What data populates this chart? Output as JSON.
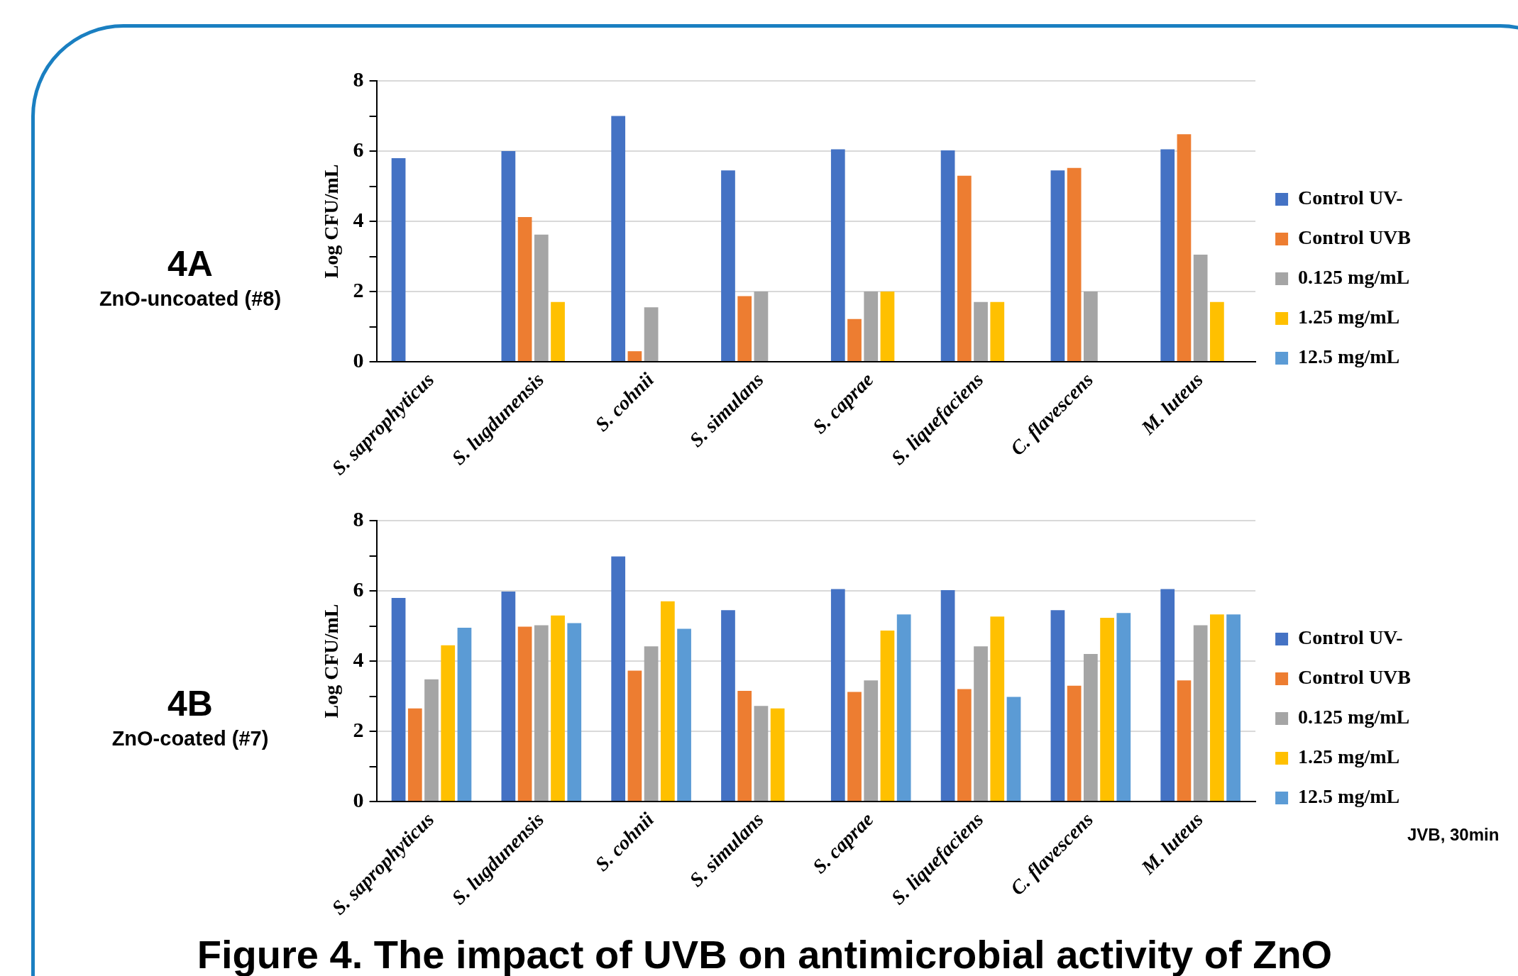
{
  "chart_data": [
    {
      "type": "bar",
      "title": "4A",
      "subtitle": "ZnO-uncoated (#8)",
      "ylabel": "Log CFU/mL",
      "categories": [
        "S. saprophyticus",
        "S. lugdunensis",
        "S. cohnii",
        "S. simulans",
        "S. caprae",
        "S. liquefaciens",
        "C. flavescens",
        "M. luteus"
      ],
      "series": [
        {
          "name": "Control UV-",
          "color": "#4472c4",
          "values": [
            5.8,
            6.0,
            7.0,
            5.45,
            6.05,
            6.02,
            5.45,
            6.05
          ]
        },
        {
          "name": "Control UVB",
          "color": "#ed7d31",
          "values": [
            null,
            4.12,
            0.3,
            1.87,
            1.22,
            5.3,
            5.52,
            6.48
          ]
        },
        {
          "name": "0.125 mg/mL",
          "color": "#a5a5a5",
          "values": [
            null,
            3.62,
            1.55,
            2.0,
            2.0,
            1.7,
            2.0,
            3.05
          ]
        },
        {
          "name": "1.25 mg/mL",
          "color": "#ffc000",
          "values": [
            null,
            1.7,
            null,
            null,
            2.0,
            1.7,
            null,
            1.7
          ]
        },
        {
          "name": "12.5 mg/mL",
          "color": "#5b9bd5",
          "values": [
            null,
            null,
            null,
            null,
            null,
            null,
            null,
            null
          ]
        }
      ],
      "ylim": [
        0,
        8
      ],
      "yticks": [
        0,
        {
          "value": 1,
          "label": null
        },
        2,
        {
          "value": 3,
          "label": null
        },
        4,
        {
          "value": 5,
          "label": null
        },
        6,
        {
          "value": 7,
          "label": null
        },
        8
      ],
      "grid": "y",
      "legend": "right"
    },
    {
      "type": "bar",
      "title": "4B",
      "subtitle": "ZnO-coated (#7)",
      "ylabel": "Log CFU/mL",
      "categories": [
        "S. saprophyticus",
        "S. lugdunensis",
        "S. cohnii",
        "S. simulans",
        "S. caprae",
        "S. liquefaciens",
        "C. flavescens",
        "M. luteus"
      ],
      "series": [
        {
          "name": "Control UV-",
          "color": "#4472c4",
          "values": [
            5.8,
            5.98,
            6.98,
            5.45,
            6.05,
            6.02,
            5.45,
            6.05
          ]
        },
        {
          "name": "Control UVB",
          "color": "#ed7d31",
          "values": [
            2.65,
            4.98,
            3.73,
            3.15,
            3.12,
            3.2,
            3.3,
            3.45
          ]
        },
        {
          "name": "0.125 mg/mL",
          "color": "#a5a5a5",
          "values": [
            3.48,
            5.02,
            4.42,
            2.72,
            3.45,
            4.42,
            4.2,
            5.02
          ]
        },
        {
          "name": "1.25 mg/mL",
          "color": "#ffc000",
          "values": [
            4.45,
            5.3,
            5.7,
            2.65,
            4.87,
            5.27,
            5.23,
            5.33
          ]
        },
        {
          "name": "12.5 mg/mL",
          "color": "#5b9bd5",
          "values": [
            4.95,
            5.08,
            4.92,
            null,
            5.33,
            2.98,
            5.37,
            5.33
          ]
        }
      ],
      "ylim": [
        0,
        8
      ],
      "yticks": [
        0,
        {
          "value": 1,
          "label": null
        },
        2,
        {
          "value": 3,
          "label": null
        },
        4,
        {
          "value": 5,
          "label": null
        },
        6,
        {
          "value": 7,
          "label": null
        },
        8
      ],
      "grid": "y",
      "legend": "right",
      "annotations": [
        "Figure 4. The impact of UVB on antimicrobial activity of ZnO",
        "JVB, 30min"
      ]
    }
  ]
}
